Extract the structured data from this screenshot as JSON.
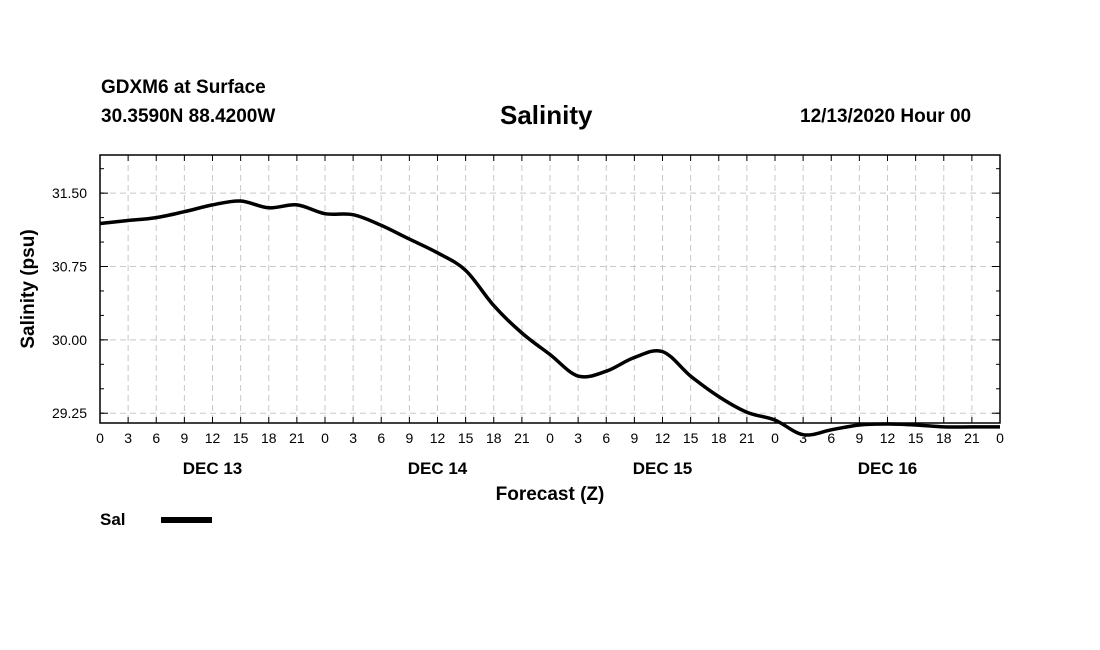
{
  "header": {
    "station": "GDXM6 at Surface",
    "coords": "30.3590N 88.4200W",
    "title": "Salinity",
    "datetime": "12/13/2020 Hour 00"
  },
  "chart_data": {
    "type": "line",
    "title": "Salinity",
    "xlabel": "Forecast (Z)",
    "ylabel": "Salinity (psu)",
    "ylim": [
      29.15,
      31.89
    ],
    "xlim": [
      0,
      96
    ],
    "grid": true,
    "x_tick_labels": [
      "0",
      "3",
      "6",
      "9",
      "12",
      "15",
      "18",
      "21",
      "0",
      "3",
      "6",
      "9",
      "12",
      "15",
      "18",
      "21",
      "0",
      "3",
      "6",
      "9",
      "12",
      "15",
      "18",
      "21",
      "0",
      "3",
      "6",
      "9",
      "12",
      "15",
      "18",
      "21",
      "0"
    ],
    "y_ticks": [
      29.25,
      30.0,
      30.75,
      31.5
    ],
    "y_tick_labels": [
      "29.25",
      "30.00",
      "30.75",
      "31.50"
    ],
    "day_labels": [
      {
        "hour": 12,
        "label": "DEC 13"
      },
      {
        "hour": 36,
        "label": "DEC 14"
      },
      {
        "hour": 60,
        "label": "DEC 15"
      },
      {
        "hour": 84,
        "label": "DEC 16"
      }
    ],
    "legend": {
      "position": "bottom-left",
      "label": "Sal"
    },
    "series": [
      {
        "name": "Sal",
        "x": [
          0,
          3,
          6,
          9,
          12,
          15,
          18,
          21,
          24,
          27,
          30,
          33,
          36,
          39,
          42,
          45,
          48,
          51,
          54,
          57,
          60,
          63,
          66,
          69,
          72,
          75,
          78,
          81,
          84,
          87,
          90,
          93,
          96
        ],
        "values": [
          31.19,
          31.22,
          31.25,
          31.31,
          31.38,
          31.42,
          31.35,
          31.38,
          31.29,
          31.28,
          31.17,
          31.03,
          30.89,
          30.71,
          30.35,
          30.07,
          29.85,
          29.63,
          29.68,
          29.82,
          29.88,
          29.63,
          29.42,
          29.26,
          29.18,
          29.03,
          29.08,
          29.13,
          29.14,
          29.13,
          29.11,
          29.11,
          29.11
        ]
      }
    ]
  }
}
